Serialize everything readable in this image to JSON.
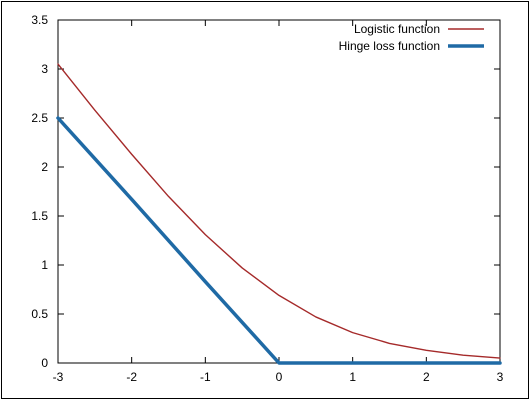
{
  "chart_data": {
    "type": "line",
    "title": "",
    "xlabel": "",
    "ylabel": "",
    "xlim": [
      -3,
      3
    ],
    "ylim": [
      0,
      3.5
    ],
    "x_ticks": [
      -3,
      -2,
      -1,
      0,
      1,
      2,
      3
    ],
    "y_ticks": [
      0,
      0.5,
      1,
      1.5,
      2,
      2.5,
      3,
      3.5
    ],
    "x_tick_labels": [
      "-3",
      "-2",
      "-1",
      "0",
      "1",
      "2",
      "3"
    ],
    "y_tick_labels": [
      "0",
      "0.5",
      "1",
      "1.5",
      "2",
      "2.5",
      "3",
      "3.5"
    ],
    "grid": false,
    "legend_position": "top-right",
    "series": [
      {
        "name": "Logistic function",
        "color": "#a52a2a",
        "x": [
          -3,
          -2.5,
          -2,
          -1.5,
          -1,
          -0.5,
          0,
          0.5,
          1,
          1.5,
          2,
          2.5,
          3
        ],
        "y": [
          3.05,
          2.58,
          2.13,
          1.7,
          1.31,
          0.97,
          0.69,
          0.47,
          0.31,
          0.2,
          0.13,
          0.08,
          0.05
        ]
      },
      {
        "name": "Hinge loss function",
        "color": "#1f6aa5",
        "x": [
          -3,
          -2,
          -1,
          0,
          1,
          2,
          3
        ],
        "y": [
          2.5,
          1.67,
          0.83,
          0,
          0,
          0,
          0
        ]
      }
    ]
  }
}
